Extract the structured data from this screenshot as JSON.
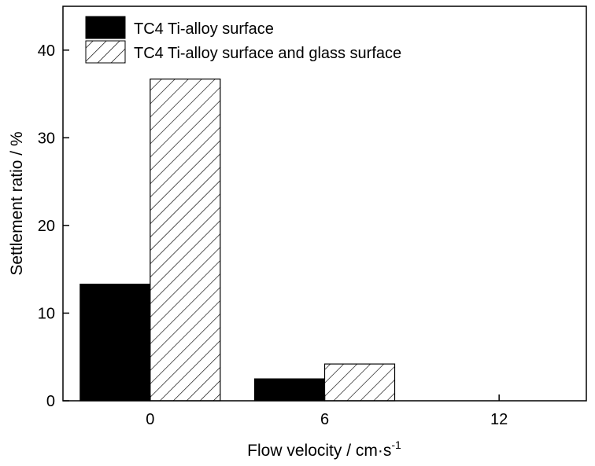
{
  "chart_data": {
    "type": "bar",
    "xlabel": "Flow velocity / cm·s",
    "xlabel_superscript": "-1",
    "ylabel": "Settlement ratio / %",
    "categories": [
      "0",
      "6",
      "12"
    ],
    "ylim": [
      0,
      45
    ],
    "yticks": [
      "0",
      "10",
      "20",
      "30",
      "40"
    ],
    "series": [
      {
        "name": "TC4 Ti-alloy surface",
        "values": [
          13.3,
          2.5,
          0
        ],
        "fill": "solid",
        "color": "#000000"
      },
      {
        "name": "TC4 Ti-alloy surface and glass surface",
        "values": [
          36.7,
          4.2,
          0
        ],
        "fill": "diagonal-hatch",
        "color": "#000000"
      }
    ],
    "legend_position": "top-left",
    "grid": false
  }
}
